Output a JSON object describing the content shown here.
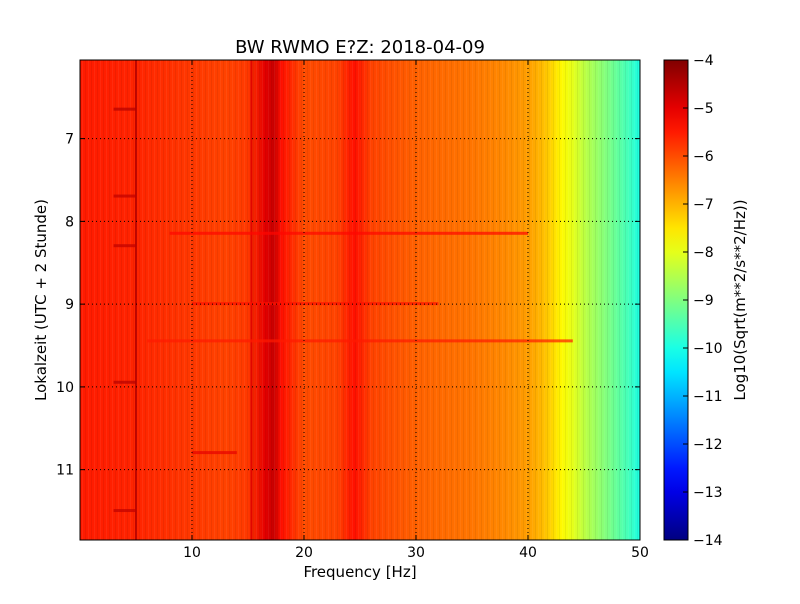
{
  "chart_data": {
    "type": "heatmap",
    "title": "BW RWMO E?Z: 2018-04-09",
    "xlabel": "Frequency [Hz]",
    "ylabel": "Lokalzeit (UTC + 2 Stunde)",
    "xlim": [
      0,
      50
    ],
    "ylim": [
      11.85,
      6.05
    ],
    "y_inverted": true,
    "x_ticks": [
      10,
      20,
      30,
      40,
      50
    ],
    "x_tick_labels": [
      "10",
      "20",
      "30",
      "40",
      "50"
    ],
    "y_ticks": [
      7,
      8,
      9,
      10,
      11
    ],
    "y_tick_labels": [
      "7",
      "8",
      "9",
      "10",
      "11"
    ],
    "grid": true,
    "colormap": "jet",
    "colorbar": {
      "label": "Log10(Sqrt(m**2/s**2/Hz))",
      "range": [
        -14,
        -4
      ],
      "ticks": [
        -4,
        -5,
        -6,
        -7,
        -8,
        -9,
        -10,
        -11,
        -12,
        -13,
        -14
      ],
      "tick_labels": [
        "−4",
        "−5",
        "−6",
        "−7",
        "−8",
        "−9",
        "−10",
        "−11",
        "−12",
        "−13",
        "−14"
      ]
    },
    "spectral_profile": {
      "frequency_hz": [
        0,
        5,
        10,
        13,
        15,
        16.5,
        17.3,
        18,
        20,
        23,
        24.5,
        26,
        30,
        35,
        38,
        40,
        41,
        42,
        43,
        44,
        45,
        46,
        47,
        48,
        49,
        50
      ],
      "level": [
        -5.5,
        -5.6,
        -5.8,
        -5.9,
        -5.8,
        -5.0,
        -4.7,
        -5.4,
        -6.0,
        -5.9,
        -5.4,
        -5.9,
        -6.2,
        -6.4,
        -6.6,
        -6.8,
        -7.0,
        -7.3,
        -7.7,
        -8.0,
        -8.4,
        -8.7,
        -9.0,
        -9.3,
        -9.6,
        -10.0
      ]
    },
    "narrow_lines": [
      {
        "frequency_hz": 5.0,
        "level": -4.5
      },
      {
        "frequency_hz": 15.3,
        "level": -4.9
      }
    ],
    "horizontal_bands": [
      {
        "time": 6.65,
        "f_from": 3,
        "f_to": 5,
        "level": -4.5
      },
      {
        "time": 7.7,
        "f_from": 3,
        "f_to": 5,
        "level": -4.6
      },
      {
        "time": 8.15,
        "f_from": 8,
        "f_to": 40,
        "level": -5.3
      },
      {
        "time": 8.3,
        "f_from": 3,
        "f_to": 5,
        "level": -4.6
      },
      {
        "time": 9.0,
        "f_from": 10,
        "f_to": 32,
        "level": -5.4
      },
      {
        "time": 9.45,
        "f_from": 6,
        "f_to": 44,
        "level": -5.5
      },
      {
        "time": 9.95,
        "f_from": 3,
        "f_to": 5,
        "level": -4.5
      },
      {
        "time": 10.8,
        "f_from": 10,
        "f_to": 14,
        "level": -5.0
      },
      {
        "time": 11.5,
        "f_from": 3,
        "f_to": 5,
        "level": -4.6
      }
    ]
  }
}
